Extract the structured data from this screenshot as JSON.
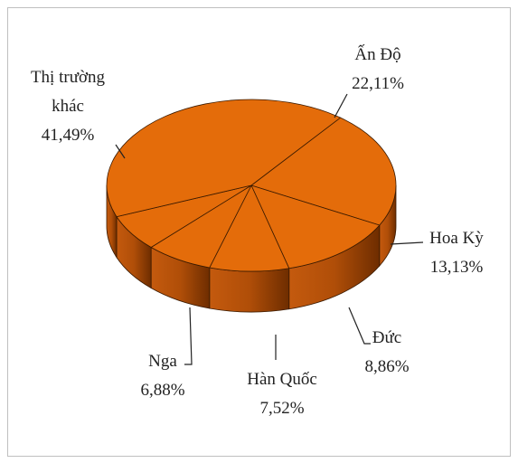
{
  "chart_data": {
    "type": "pie",
    "categories": [
      "Ấn Độ",
      "Hoa Kỳ",
      "Đức",
      "Hàn Quốc",
      "Nga",
      "Thị trường khác"
    ],
    "values": [
      22.11,
      13.13,
      8.86,
      7.52,
      6.88,
      41.49
    ],
    "value_labels": [
      "22,11%",
      "13,13%",
      "8,86%",
      "7,52%",
      "6,88%",
      "41,49%"
    ],
    "color": "#e46c0a"
  }
}
